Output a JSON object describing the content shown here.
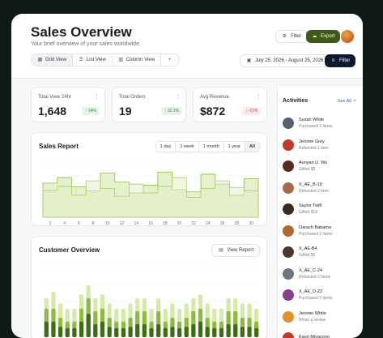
{
  "header": {
    "title": "Sales Overview",
    "subtitle": "Your brief overview of your sales worldwide.",
    "filter_label": "Filter",
    "export_label": "Export",
    "date_range": "July 25, 2026 - August 25, 2026",
    "filter2_label": "Filter",
    "views": [
      {
        "label": "Grid View",
        "icon": "grid-icon"
      },
      {
        "label": "List View",
        "icon": "list-icon"
      },
      {
        "label": "Column View",
        "icon": "columns-icon"
      }
    ]
  },
  "stats": [
    {
      "label": "Total View 24hr",
      "value": "1,648",
      "badge": "↑ 14%",
      "trend": "up"
    },
    {
      "label": "Total Orders",
      "value": "19",
      "badge": "↑ 32.1%",
      "trend": "up"
    },
    {
      "label": "Avg Revenue",
      "value": "$872",
      "badge": "↓ -11%",
      "trend": "down"
    }
  ],
  "sales_report": {
    "title": "Sales Report",
    "ranges": [
      "1 day",
      "1 week",
      "1 month",
      "1 year",
      "All"
    ],
    "x_ticks": [
      "2",
      "4",
      "6",
      "8",
      "10",
      "12",
      "14",
      "16",
      "18",
      "20",
      "22",
      "24",
      "26",
      "28",
      "30"
    ]
  },
  "customer_overview": {
    "title": "Customer Overview",
    "button_label": "View Report"
  },
  "activities": {
    "title": "Activities",
    "see_all": "See All",
    "items": [
      {
        "name": "Susan White",
        "desc": "Purchased 2 items",
        "color": "#556070"
      },
      {
        "name": "Jerome Grey",
        "desc": "Refunded 1 item",
        "color": "#c0392b"
      },
      {
        "name": "Aunyan U. Wu",
        "desc": "Gifted $9",
        "color": "#5b2a1f"
      },
      {
        "name": "X_AE_B-19",
        "desc": "Refunded 2 item",
        "color": "#a86a4a"
      },
      {
        "name": "Saylor Twift",
        "desc": "Gifted $19",
        "color": "#3c2a20"
      },
      {
        "name": "Oarach Babama",
        "desc": "Purchased 2 items",
        "color": "#b2682c"
      },
      {
        "name": "X_AE-B4",
        "desc": "Gifted $6",
        "color": "#4a3a2a"
      },
      {
        "name": "X_AE_C-24",
        "desc": "Refunded 2 items",
        "color": "#6b7680"
      },
      {
        "name": "X_AE_D-22",
        "desc": "Purchased 9 items",
        "color": "#8a3e8e"
      },
      {
        "name": "Jerome White",
        "desc": "Wrote a review",
        "color": "#e0902c"
      },
      {
        "name": "Kaori Miyazono",
        "desc": "",
        "color": "#c0392b"
      }
    ]
  },
  "colors": {
    "olive": "#3e5a19",
    "green": "#7aa530",
    "light_green": "#c8e08e",
    "navy": "#0d1a2e"
  },
  "chart_data": [
    {
      "type": "area",
      "title": "Sales Report",
      "x": [
        2,
        4,
        6,
        8,
        10,
        12,
        14,
        16,
        18,
        20,
        22,
        24,
        26,
        28,
        30
      ],
      "series": [
        {
          "values": [
            62,
            72,
            55,
            48,
            80,
            64,
            44,
            58,
            82,
            50,
            46,
            78,
            60,
            40,
            70
          ]
        },
        {
          "values": [
            48,
            56,
            40,
            66,
            52,
            38,
            60,
            44,
            56,
            72,
            36,
            52,
            66,
            54,
            48
          ]
        }
      ],
      "ylim": [
        0,
        100
      ]
    },
    {
      "type": "bar",
      "title": "Customer Overview",
      "series": [
        {
          "values": [
            30,
            35,
            26,
            22,
            22,
            33,
            40,
            30,
            33,
            26,
            22,
            22,
            26,
            30,
            30,
            22,
            30,
            22,
            26,
            22,
            26,
            30,
            33,
            26,
            22,
            22,
            30,
            30,
            26,
            26,
            22
          ]
        },
        {
          "values": [
            22,
            22,
            15,
            12,
            12,
            22,
            30,
            20,
            22,
            15,
            12,
            12,
            15,
            20,
            20,
            12,
            20,
            12,
            15,
            12,
            15,
            20,
            22,
            15,
            12,
            12,
            20,
            20,
            15,
            15,
            12
          ]
        },
        {
          "values": [
            12,
            12,
            8,
            7,
            7,
            12,
            18,
            10,
            12,
            8,
            7,
            7,
            8,
            10,
            10,
            7,
            10,
            7,
            8,
            7,
            8,
            10,
            12,
            8,
            7,
            7,
            10,
            10,
            8,
            8,
            7
          ]
        }
      ]
    }
  ]
}
